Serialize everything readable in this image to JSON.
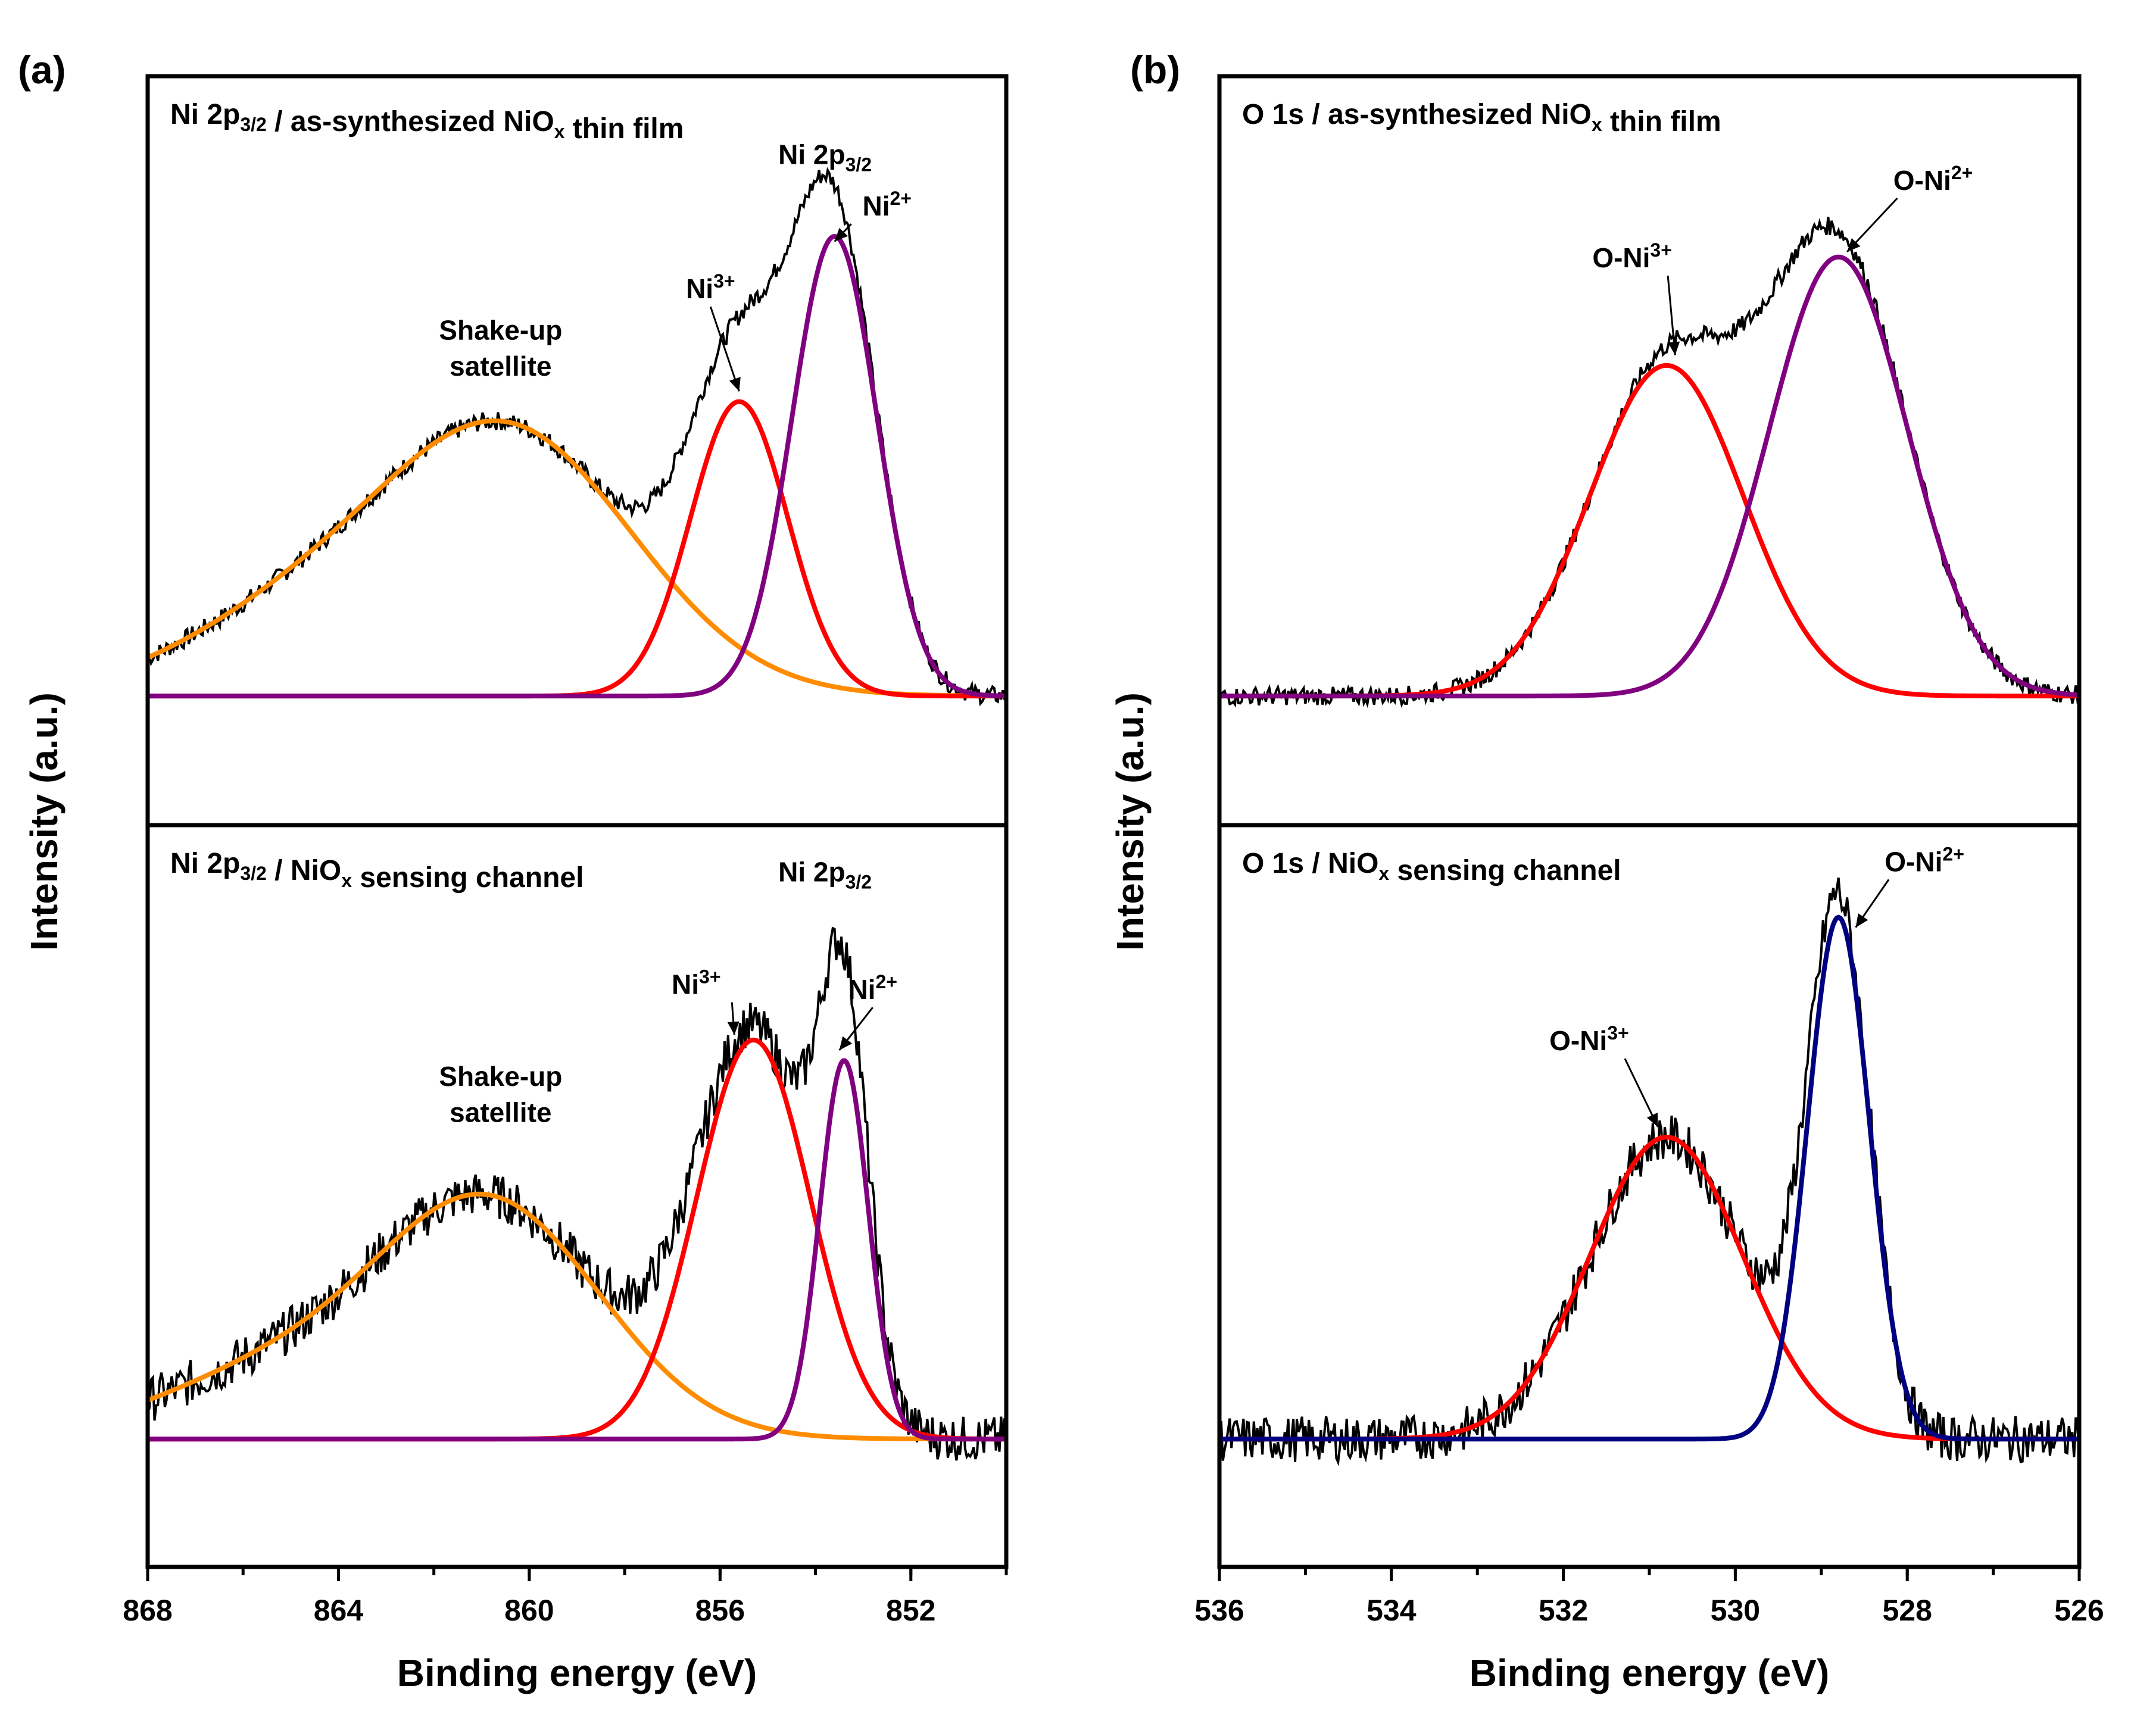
{
  "figure": {
    "panels": [
      {
        "id": "a",
        "letter": "(a)",
        "xlabel": "Binding energy (eV)",
        "ylabel": "Intensity (a.u.)",
        "xlim": [
          868,
          850
        ],
        "xticks": [
          868,
          864,
          860,
          856,
          852
        ],
        "subplots": [
          {
            "title": {
              "main": "Ni 2p",
              "sub": "3/2",
              "mid": " / as-synthesized NiO",
              "sub2": "x",
              "tail": " thin film"
            },
            "baseline": 0.05,
            "components": [
              {
                "name": "Shake-up satellite",
                "color": "#ff8c00",
                "center": 860.4,
                "height": 0.5,
                "fwhm": 6.2,
                "wing": true
              },
              {
                "name": "Ni3+",
                "color": "#ff0000",
                "center": 855.6,
                "height": 0.57,
                "fwhm": 2.4
              },
              {
                "name": "Ni2+",
                "color": "#800080",
                "center": 853.6,
                "height": 0.89,
                "fwhm": 2.1
              }
            ],
            "annotations": [
              {
                "label": "Ni 2p",
                "sub": "3/2",
                "x": 853.8,
                "y": 1.08
              },
              {
                "label": "Ni",
                "sup": "2+",
                "x": 852.5,
                "y": 0.98,
                "arrow_to": [
                  853.6,
                  0.93
                ]
              },
              {
                "label": "Ni",
                "sup": "3+",
                "x": 856.2,
                "y": 0.82,
                "arrow_to": [
                  855.6,
                  0.64
                ]
              },
              {
                "label": "Shake-up",
                "x": 860.6,
                "y": 0.74
              },
              {
                "label": "satellite",
                "x": 860.6,
                "y": 0.67
              }
            ],
            "ylim": [
              -0.2,
              1.25
            ]
          },
          {
            "title": {
              "main": "Ni 2p",
              "sub": "3/2",
              "mid": " / NiO",
              "sub2": "x",
              "tail": " sensing channel"
            },
            "baseline": 0.05,
            "components": [
              {
                "name": "Shake-up satellite",
                "color": "#ff8c00",
                "center": 860.8,
                "height": 0.45,
                "fwhm": 5.5,
                "wing": true
              },
              {
                "name": "Ni3+",
                "color": "#ff0000",
                "center": 855.3,
                "height": 0.78,
                "fwhm": 2.8
              },
              {
                "name": "Ni2+",
                "color": "#800080",
                "center": 853.4,
                "height": 0.74,
                "fwhm": 1.2
              }
            ],
            "annotations": [
              {
                "label": "Ni 2p",
                "sub": "3/2",
                "x": 853.8,
                "y": 1.14
              },
              {
                "label": "Ni",
                "sup": "2+",
                "x": 852.8,
                "y": 0.91,
                "arrow_to": [
                  853.5,
                  0.81
                ]
              },
              {
                "label": "Ni",
                "sup": "3+",
                "x": 856.5,
                "y": 0.92,
                "arrow_to": [
                  855.7,
                  0.84
                ]
              },
              {
                "label": "Shake-up",
                "x": 860.6,
                "y": 0.74
              },
              {
                "label": "satellite",
                "x": 860.6,
                "y": 0.67
              }
            ],
            "ylim": [
              -0.2,
              1.25
            ]
          }
        ]
      },
      {
        "id": "b",
        "letter": "(b)",
        "xlabel": "Binding energy (eV)",
        "ylabel": "Intensity (a.u.)",
        "xlim": [
          536,
          526
        ],
        "xticks": [
          536,
          534,
          532,
          530,
          528,
          526
        ],
        "subplots": [
          {
            "title": {
              "main": "O 1s / as-synthesized NiO",
              "sub": "x",
              "mid": " thin film",
              "sub2": "",
              "tail": ""
            },
            "baseline": 0.05,
            "components": [
              {
                "name": "O-Ni3+",
                "color": "#ff0000",
                "center": 530.8,
                "height": 0.64,
                "fwhm": 2.1
              },
              {
                "name": "O-Ni2+",
                "color": "#800080",
                "center": 528.8,
                "height": 0.85,
                "fwhm": 1.9
              }
            ],
            "annotations": [
              {
                "label": "O-Ni",
                "sup": "3+",
                "x": 531.2,
                "y": 0.88,
                "arrow_to": [
                  530.7,
                  0.71
                ]
              },
              {
                "label": "O-Ni",
                "sup": "2+",
                "x": 527.7,
                "y": 1.03,
                "arrow_to": [
                  528.7,
                  0.91
                ]
              }
            ],
            "ylim": [
              -0.2,
              1.25
            ]
          },
          {
            "title": {
              "main": "O 1s / NiO",
              "sub": "x",
              "mid": " sensing channel",
              "sub2": "",
              "tail": ""
            },
            "baseline": 0.05,
            "components": [
              {
                "name": "O-Ni3+",
                "color": "#ff0000",
                "center": 530.8,
                "height": 0.59,
                "fwhm": 2.1
              },
              {
                "name": "O-Ni2+",
                "color": "#000080",
                "center": 528.8,
                "height": 1.02,
                "fwhm": 0.85
              }
            ],
            "annotations": [
              {
                "label": "O-Ni",
                "sup": "3+",
                "x": 531.7,
                "y": 0.81,
                "arrow_to": [
                  530.9,
                  0.66
                ]
              },
              {
                "label": "O-Ni",
                "sup": "2+",
                "x": 527.8,
                "y": 1.16,
                "arrow_to": [
                  528.6,
                  1.05
                ]
              }
            ],
            "ylim": [
              -0.2,
              1.25
            ]
          }
        ]
      }
    ]
  },
  "chart_data": [
    {
      "type": "line",
      "title": "Ni 2p3/2 / as-synthesized NiOx thin film",
      "xlabel": "Binding energy (eV)",
      "ylabel": "Intensity (a.u.)",
      "xlim": [
        868,
        850
      ],
      "series": [
        {
          "name": "Shake-up satellite",
          "center_eV": 860.4
        },
        {
          "name": "Ni3+",
          "center_eV": 855.6
        },
        {
          "name": "Ni2+",
          "center_eV": 853.6
        }
      ]
    },
    {
      "type": "line",
      "title": "Ni 2p3/2 / NiOx sensing channel",
      "xlabel": "Binding energy (eV)",
      "ylabel": "Intensity (a.u.)",
      "xlim": [
        868,
        850
      ],
      "series": [
        {
          "name": "Shake-up satellite",
          "center_eV": 860.8
        },
        {
          "name": "Ni3+",
          "center_eV": 855.3
        },
        {
          "name": "Ni2+",
          "center_eV": 853.4
        }
      ]
    },
    {
      "type": "line",
      "title": "O 1s / as-synthesized NiOx thin film",
      "xlabel": "Binding energy (eV)",
      "ylabel": "Intensity (a.u.)",
      "xlim": [
        536,
        526
      ],
      "series": [
        {
          "name": "O-Ni3+",
          "center_eV": 530.8
        },
        {
          "name": "O-Ni2+",
          "center_eV": 528.8
        }
      ]
    },
    {
      "type": "line",
      "title": "O 1s / NiOx sensing channel",
      "xlabel": "Binding energy (eV)",
      "ylabel": "Intensity (a.u.)",
      "xlim": [
        536,
        526
      ],
      "series": [
        {
          "name": "O-Ni3+",
          "center_eV": 530.8
        },
        {
          "name": "O-Ni2+",
          "center_eV": 528.8
        }
      ]
    }
  ]
}
